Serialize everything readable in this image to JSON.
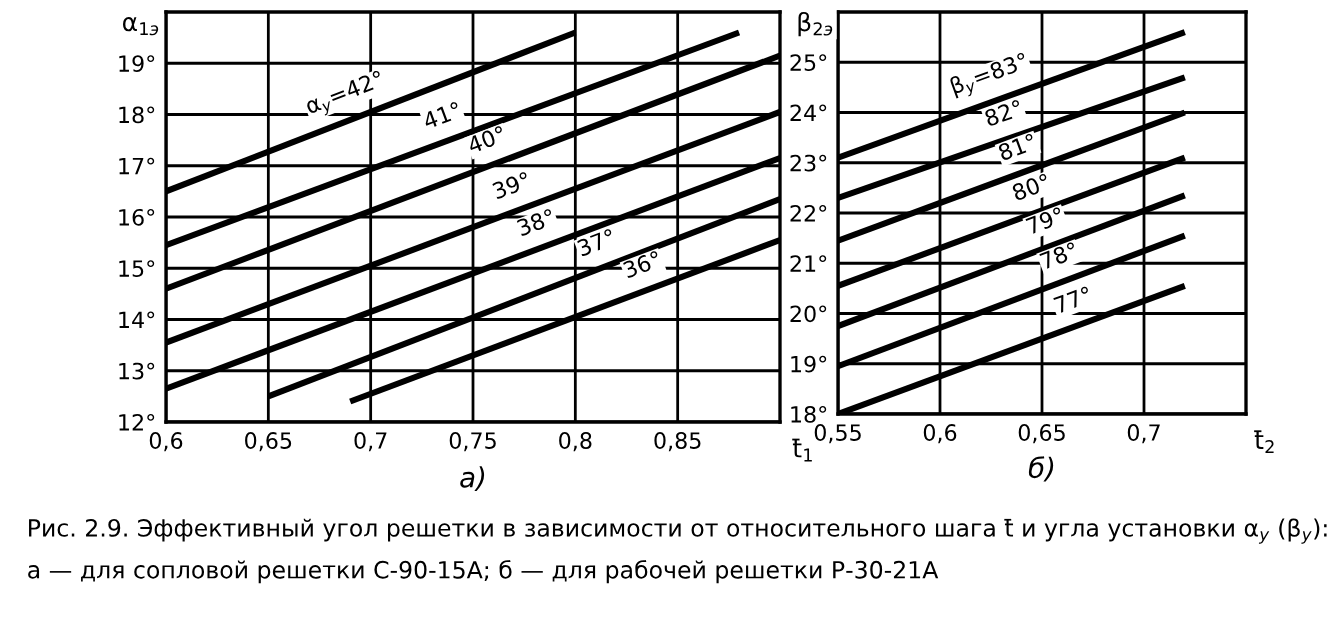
{
  "chart_data": [
    {
      "type": "line",
      "xlabel": "t̄$_{1}$",
      "ylabel": "α$_{1э}$",
      "title": "а)",
      "xlim": [
        0.6,
        0.9
      ],
      "ylim": [
        12,
        20
      ],
      "xticks": [
        {
          "value": 0.6,
          "label": "0,6"
        },
        {
          "value": 0.65,
          "label": "0,65"
        },
        {
          "value": 0.7,
          "label": "0,7"
        },
        {
          "value": 0.75,
          "label": "0,75"
        },
        {
          "value": 0.8,
          "label": "0,8"
        },
        {
          "value": 0.85,
          "label": "0,85"
        }
      ],
      "yticks": [
        {
          "value": 12,
          "label": "12°"
        },
        {
          "value": 13,
          "label": "13°"
        },
        {
          "value": 14,
          "label": "14°"
        },
        {
          "value": 15,
          "label": "15°"
        },
        {
          "value": 16,
          "label": "16°"
        },
        {
          "value": 17,
          "label": "17°"
        },
        {
          "value": 18,
          "label": "18°"
        },
        {
          "value": 19,
          "label": "19°"
        }
      ],
      "grid": true,
      "series": [
        {
          "name": "α$_{у}$=42°",
          "color": "#000000",
          "x": [
            0.6,
            0.8
          ],
          "values": [
            16.5,
            19.6
          ]
        },
        {
          "name": "41°",
          "color": "#000000",
          "x": [
            0.6,
            0.88
          ],
          "values": [
            15.45,
            19.6
          ]
        },
        {
          "name": "40°",
          "color": "#000000",
          "x": [
            0.6,
            0.9
          ],
          "values": [
            14.6,
            19.15
          ]
        },
        {
          "name": "39°",
          "color": "#000000",
          "x": [
            0.6,
            0.9
          ],
          "values": [
            13.55,
            18.05
          ]
        },
        {
          "name": "38°",
          "color": "#000000",
          "x": [
            0.6,
            0.9
          ],
          "values": [
            12.65,
            17.15
          ]
        },
        {
          "name": "37°",
          "color": "#000000",
          "x": [
            0.65,
            0.9
          ],
          "values": [
            12.5,
            16.35
          ]
        },
        {
          "name": "36°",
          "color": "#000000",
          "x": [
            0.69,
            0.9
          ],
          "values": [
            12.4,
            15.55
          ]
        }
      ],
      "annotations": [
        "Рис. 2.9. Эффективный угол решетки в зависимости от относительного шага t̄ и угла установки α$_{у}$ (β$_{у}$):",
        "а — для сопловой решетки С-90-15А; б — для рабочей решетки Р-30-21А"
      ]
    },
    {
      "type": "line",
      "xlabel": "t̄$_{2}$",
      "ylabel": "β$_{2э}$",
      "title": "б)",
      "xlim": [
        0.55,
        0.75
      ],
      "ylim": [
        18,
        26
      ],
      "xticks": [
        {
          "value": 0.55,
          "label": "0,55"
        },
        {
          "value": 0.6,
          "label": "0,6"
        },
        {
          "value": 0.65,
          "label": "0,65"
        },
        {
          "value": 0.7,
          "label": "0,7"
        }
      ],
      "yticks": [
        {
          "value": 18,
          "label": "18°"
        },
        {
          "value": 19,
          "label": "19°"
        },
        {
          "value": 20,
          "label": "20°"
        },
        {
          "value": 21,
          "label": "21°"
        },
        {
          "value": 22,
          "label": "22°"
        },
        {
          "value": 23,
          "label": "23°"
        },
        {
          "value": 24,
          "label": "24°"
        },
        {
          "value": 25,
          "label": "25°"
        }
      ],
      "grid": true,
      "series": [
        {
          "name": "β$_{у}$=83°",
          "color": "#000000",
          "x": [
            0.55,
            0.72
          ],
          "values": [
            23.1,
            25.6
          ]
        },
        {
          "name": "82°",
          "color": "#000000",
          "x": [
            0.55,
            0.72
          ],
          "values": [
            22.3,
            24.7
          ]
        },
        {
          "name": "81°",
          "color": "#000000",
          "x": [
            0.55,
            0.72
          ],
          "values": [
            21.45,
            24.0
          ]
        },
        {
          "name": "80°",
          "color": "#000000",
          "x": [
            0.55,
            0.72
          ],
          "values": [
            20.55,
            23.1
          ]
        },
        {
          "name": "79°",
          "color": "#000000",
          "x": [
            0.55,
            0.72
          ],
          "values": [
            19.75,
            22.35
          ]
        },
        {
          "name": "78°",
          "color": "#000000",
          "x": [
            0.55,
            0.72
          ],
          "values": [
            18.95,
            21.55
          ]
        },
        {
          "name": "77°",
          "color": "#000000",
          "x": [
            0.55,
            0.72
          ],
          "values": [
            18.0,
            20.55
          ]
        }
      ]
    }
  ]
}
